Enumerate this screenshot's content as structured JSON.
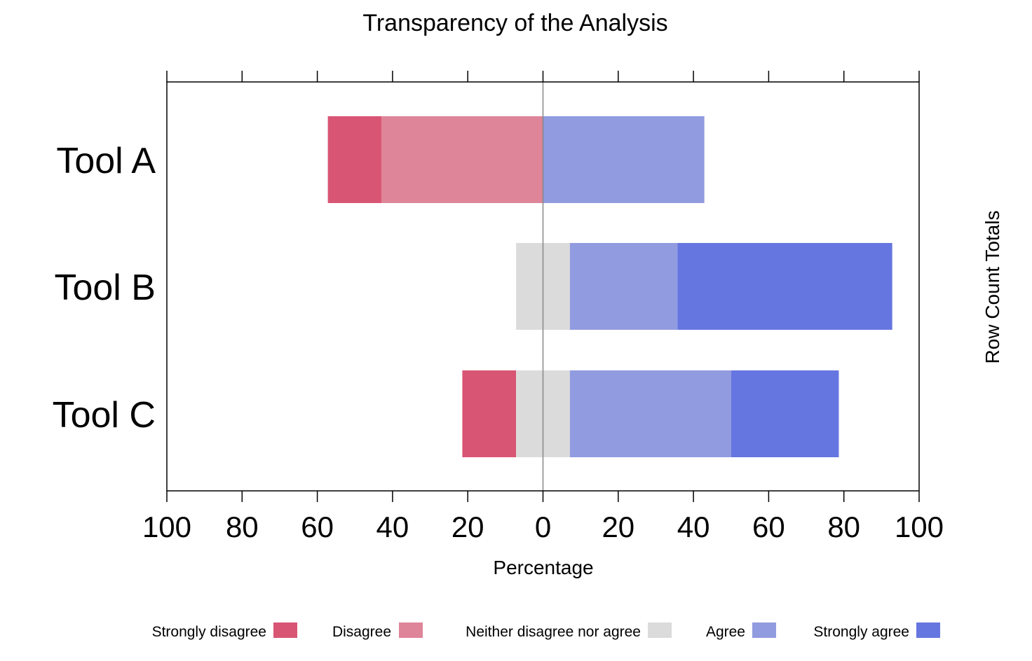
{
  "chart_data": {
    "type": "bar",
    "orientation": "horizontal",
    "stacked": "diverging",
    "title": "Transparency of the Analysis",
    "xlabel": "Percentage",
    "right_label": "Row Count Totals",
    "xlim": [
      -100,
      100
    ],
    "x_ticks": [
      -100,
      -80,
      -60,
      -40,
      -20,
      0,
      20,
      40,
      60,
      80,
      100
    ],
    "x_tick_labels": [
      "100",
      "80",
      "60",
      "40",
      "20",
      "0",
      "20",
      "40",
      "60",
      "80",
      "100"
    ],
    "categories": [
      "Tool A",
      "Tool B",
      "Tool C"
    ],
    "series": [
      {
        "name": "Strongly disagree",
        "color": "#D95574",
        "values": [
          14.3,
          0,
          14.3
        ]
      },
      {
        "name": "Disagree",
        "color": "#DF8599",
        "values": [
          42.9,
          0,
          0
        ]
      },
      {
        "name": "Neither disagree nor agree",
        "color": "#DBDBDB",
        "values": [
          0,
          14.3,
          14.3
        ]
      },
      {
        "name": "Agree",
        "color": "#919BDF",
        "values": [
          42.9,
          28.6,
          42.9
        ]
      },
      {
        "name": "Strongly agree",
        "color": "#6676E0",
        "values": [
          0,
          57.1,
          28.6
        ]
      }
    ],
    "legend_position": "bottom",
    "grid": false
  }
}
